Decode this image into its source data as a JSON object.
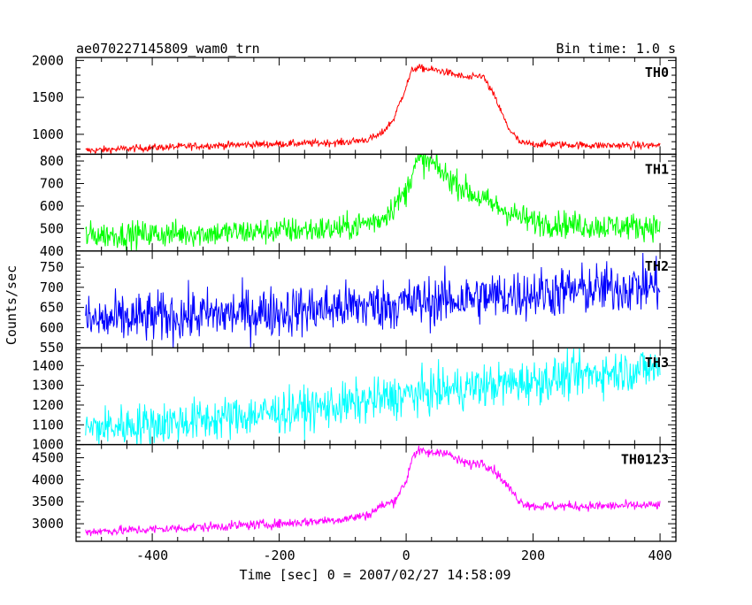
{
  "chart_data": {
    "type": "line",
    "title": "ae070227145809_wam0_trn",
    "bin_time_label": "Bin time: 1.0 s",
    "xlabel": "Time [sec] 0 = 2007/02/27 14:58:09",
    "ylabel": "Counts/sec",
    "xlim": [
      -520,
      425
    ],
    "x_ticks": [
      -400,
      -200,
      0,
      200,
      400
    ],
    "grid": false,
    "panels": [
      {
        "name": "TH0",
        "color": "#ff0000",
        "ylim": [
          730,
          2040
        ],
        "y_ticks": [
          1000,
          1500,
          2000
        ],
        "noise": 25,
        "x": [
          -505,
          -400,
          -300,
          -200,
          -100,
          -60,
          -40,
          -20,
          0,
          10,
          20,
          60,
          80,
          100,
          120,
          140,
          160,
          180,
          200,
          300,
          400
        ],
        "y": [
          780,
          820,
          850,
          870,
          890,
          930,
          1000,
          1200,
          1650,
          1880,
          1900,
          1850,
          1800,
          1760,
          1800,
          1500,
          1100,
          880,
          870,
          850,
          850
        ]
      },
      {
        "name": "TH1",
        "color": "#00ff00",
        "ylim": [
          400,
          830
        ],
        "y_ticks": [
          400,
          500,
          600,
          700,
          800
        ],
        "noise": 30,
        "x": [
          -505,
          -300,
          -100,
          -40,
          0,
          10,
          20,
          40,
          60,
          100,
          140,
          180,
          200,
          300,
          400
        ],
        "y": [
          470,
          480,
          500,
          540,
          660,
          760,
          800,
          790,
          740,
          660,
          600,
          550,
          530,
          510,
          510
        ]
      },
      {
        "name": "TH2",
        "color": "#0000ff",
        "ylim": [
          550,
          790
        ],
        "y_ticks": [
          550,
          600,
          650,
          700,
          750
        ],
        "noise": 32,
        "x": [
          -505,
          -400,
          -200,
          0,
          200,
          400
        ],
        "y": [
          615,
          625,
          640,
          660,
          685,
          705
        ]
      },
      {
        "name": "TH3",
        "color": "#00ffff",
        "ylim": [
          1000,
          1490
        ],
        "y_ticks": [
          1000,
          1100,
          1200,
          1300,
          1400
        ],
        "noise": 55,
        "x": [
          -505,
          -300,
          -100,
          0,
          100,
          200,
          300,
          400
        ],
        "y": [
          1080,
          1130,
          1200,
          1250,
          1290,
          1320,
          1360,
          1390
        ]
      },
      {
        "name": "TH0123",
        "color": "#ff00ff",
        "ylim": [
          2600,
          4800
        ],
        "y_ticks": [
          3000,
          3500,
          4000,
          4500
        ],
        "noise": 55,
        "x": [
          -505,
          -400,
          -200,
          -100,
          -60,
          -40,
          -20,
          0,
          10,
          20,
          40,
          60,
          80,
          100,
          120,
          140,
          160,
          180,
          200,
          300,
          400
        ],
        "y": [
          2820,
          2870,
          3000,
          3100,
          3200,
          3400,
          3500,
          3950,
          4550,
          4650,
          4600,
          4650,
          4450,
          4350,
          4400,
          4200,
          3850,
          3500,
          3400,
          3400,
          3420
        ]
      }
    ]
  }
}
